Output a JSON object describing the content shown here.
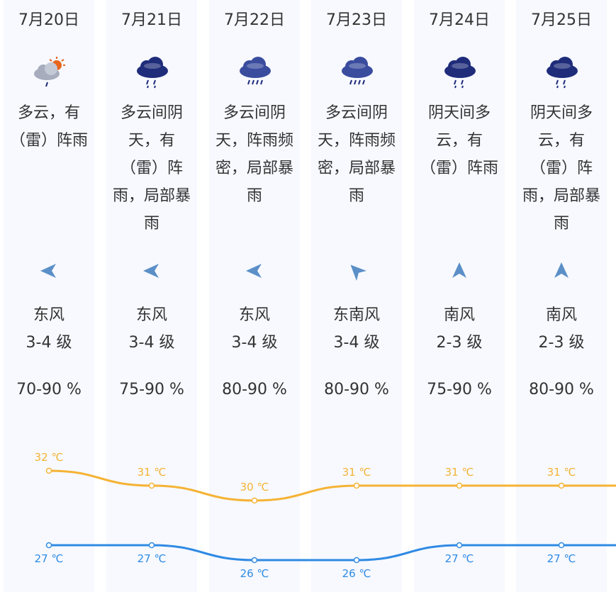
{
  "days": [
    {
      "date": "7月20日",
      "icon": "partly-cloudy-thundershower-icon",
      "desc": "多云，有（雷）阵雨",
      "wind_dir": "东风",
      "wind_level": "3-4 级",
      "arrow": "left",
      "humidity": "70-90 %"
    },
    {
      "date": "7月21日",
      "icon": "rain-icon",
      "desc": "多云间阴天，有（雷）阵雨，局部暴雨",
      "wind_dir": "东风",
      "wind_level": "3-4 级",
      "arrow": "left",
      "humidity": "75-90 %"
    },
    {
      "date": "7月22日",
      "icon": "heavy-rain-icon",
      "desc": "多云间阴天，阵雨频密，局部暴雨",
      "wind_dir": "东风",
      "wind_level": "3-4 级",
      "arrow": "left",
      "humidity": "80-90 %"
    },
    {
      "date": "7月23日",
      "icon": "heavy-rain-icon",
      "desc": "多云间阴天，阵雨频密，局部暴雨",
      "wind_dir": "东南风",
      "wind_level": "3-4 级",
      "arrow": "up-left",
      "humidity": "80-90 %"
    },
    {
      "date": "7月24日",
      "icon": "rain-icon",
      "desc": "阴天间多云，有（雷）阵雨",
      "wind_dir": "南风",
      "wind_level": "2-3 级",
      "arrow": "up",
      "humidity": "75-90 %"
    },
    {
      "date": "7月25日",
      "icon": "rain-icon",
      "desc": "阴天间多云，有（雷）阵雨，局部暴雨",
      "wind_dir": "南风",
      "wind_level": "2-3 级",
      "arrow": "up",
      "humidity": "80-90 %"
    }
  ],
  "colors": {
    "high": "#f5b335",
    "low": "#2f8ae3",
    "arrow": "#5b8fc7",
    "cloud_dark": "#1f2c7a",
    "cloud_grey": "#a7adbd",
    "sun": "#e8651c"
  },
  "chart_data": {
    "type": "line",
    "categories": [
      "7月20日",
      "7月21日",
      "7月22日",
      "7月23日",
      "7月24日",
      "7月25日"
    ],
    "series": [
      {
        "values": [
          32,
          31,
          30,
          31,
          31,
          31
        ]
      },
      {
        "values": [
          27,
          27,
          26,
          26,
          27,
          27
        ]
      }
    ],
    "labels_high": [
      "32 ℃",
      "31 ℃",
      "30 ℃",
      "31 ℃",
      "31 ℃",
      "31 ℃"
    ],
    "labels_low": [
      "27 ℃",
      "27 ℃",
      "26 ℃",
      "26 ℃",
      "27 ℃",
      "27 ℃"
    ],
    "ylim": [
      25,
      34
    ]
  }
}
